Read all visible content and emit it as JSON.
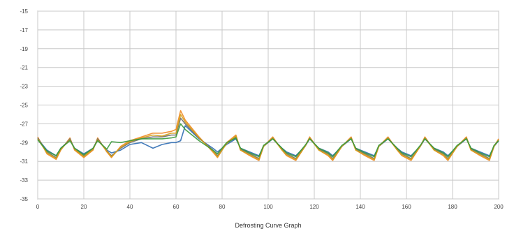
{
  "chart_data": {
    "type": "line",
    "title": "",
    "caption": "Defrosting Curve Graph",
    "xlabel": "",
    "ylabel": "",
    "xlim": [
      0,
      200
    ],
    "ylim": [
      -35,
      -15
    ],
    "x_ticks": [
      0,
      20,
      40,
      60,
      80,
      100,
      120,
      140,
      160,
      180,
      200
    ],
    "y_ticks": [
      -15,
      -17,
      -19,
      -21,
      -23,
      -25,
      -27,
      -29,
      -31,
      -33,
      -35
    ],
    "x_tick_labels": [
      "0",
      "20",
      "40",
      "60",
      "80",
      "100",
      "120",
      "140",
      "160",
      "180",
      "200"
    ],
    "y_tick_labels": [
      "-15",
      "-17",
      "-19",
      "-21",
      "-23",
      "-25",
      "-27",
      "-29",
      "-31",
      "-33",
      "-35"
    ],
    "grid": true,
    "legend": "none",
    "series": [
      {
        "color": "#2f6db3",
        "x": [
          0,
          4,
          8,
          10,
          14,
          16,
          20,
          24,
          26,
          30,
          32,
          36,
          40,
          45,
          50,
          54,
          58,
          60,
          62,
          64,
          70,
          76,
          78,
          82,
          86,
          88,
          92,
          96,
          98,
          102,
          106,
          108,
          112,
          116,
          118,
          122,
          126,
          128,
          132,
          136,
          138,
          142,
          146,
          148,
          152,
          156,
          158,
          162,
          166,
          168,
          172,
          176,
          178,
          182,
          186,
          188,
          192,
          196,
          198,
          200
        ],
        "y": [
          -28.6,
          -29.8,
          -30.4,
          -29.6,
          -28.7,
          -29.6,
          -30.2,
          -29.6,
          -28.7,
          -29.8,
          -30.1,
          -29.8,
          -29.2,
          -29.0,
          -29.6,
          -29.2,
          -29.0,
          -29.0,
          -28.8,
          -27.2,
          -28.6,
          -29.6,
          -30.0,
          -29.2,
          -28.6,
          -29.6,
          -30.0,
          -30.4,
          -29.4,
          -28.6,
          -29.6,
          -30.0,
          -30.4,
          -29.4,
          -28.6,
          -29.6,
          -30.0,
          -30.4,
          -29.4,
          -28.6,
          -29.6,
          -30.0,
          -30.4,
          -29.4,
          -28.6,
          -29.6,
          -30.0,
          -30.4,
          -29.4,
          -28.6,
          -29.6,
          -30.0,
          -30.4,
          -29.4,
          -28.6,
          -29.6,
          -30.0,
          -30.4,
          -29.4,
          -28.8
        ]
      },
      {
        "color": "#f08a24",
        "x": [
          0,
          4,
          8,
          10,
          14,
          16,
          20,
          24,
          26,
          30,
          32,
          36,
          40,
          45,
          50,
          54,
          58,
          60,
          62,
          64,
          70,
          76,
          78,
          82,
          86,
          88,
          92,
          96,
          98,
          102,
          106,
          108,
          112,
          116,
          118,
          122,
          126,
          128,
          132,
          136,
          138,
          142,
          146,
          148,
          152,
          156,
          158,
          162,
          166,
          168,
          172,
          176,
          178,
          182,
          186,
          188,
          192,
          196,
          198,
          200
        ],
        "y": [
          -28.4,
          -30.2,
          -30.8,
          -29.8,
          -28.5,
          -29.8,
          -30.6,
          -29.8,
          -28.5,
          -30.0,
          -30.6,
          -29.4,
          -28.8,
          -28.4,
          -28.0,
          -28.0,
          -27.8,
          -27.6,
          -25.6,
          -26.6,
          -28.4,
          -30.0,
          -30.6,
          -29.0,
          -28.2,
          -29.8,
          -30.4,
          -30.9,
          -29.4,
          -28.4,
          -29.8,
          -30.4,
          -30.9,
          -29.4,
          -28.4,
          -29.8,
          -30.4,
          -30.9,
          -29.4,
          -28.4,
          -29.8,
          -30.4,
          -30.9,
          -29.4,
          -28.4,
          -29.8,
          -30.4,
          -30.9,
          -29.4,
          -28.4,
          -29.8,
          -30.4,
          -30.9,
          -29.4,
          -28.4,
          -29.8,
          -30.4,
          -30.9,
          -29.4,
          -28.6
        ]
      },
      {
        "color": "#6a6a6a",
        "x": [
          0,
          4,
          8,
          10,
          14,
          16,
          20,
          24,
          26,
          30,
          32,
          36,
          40,
          45,
          50,
          54,
          58,
          60,
          62,
          64,
          70,
          76,
          78,
          82,
          86,
          88,
          92,
          96,
          98,
          102,
          106,
          108,
          112,
          116,
          118,
          122,
          126,
          128,
          132,
          136,
          138,
          142,
          146,
          148,
          152,
          156,
          158,
          162,
          166,
          168,
          172,
          176,
          178,
          182,
          186,
          188,
          192,
          196,
          198,
          200
        ],
        "y": [
          -28.5,
          -30.0,
          -30.6,
          -29.7,
          -28.6,
          -29.7,
          -30.4,
          -29.7,
          -28.6,
          -29.9,
          -30.4,
          -29.6,
          -29.0,
          -28.6,
          -28.4,
          -28.4,
          -28.2,
          -28.2,
          -26.4,
          -27.0,
          -28.5,
          -29.8,
          -30.4,
          -29.1,
          -28.4,
          -29.7,
          -30.2,
          -30.7,
          -29.4,
          -28.5,
          -29.7,
          -30.2,
          -30.7,
          -29.4,
          -28.5,
          -29.7,
          -30.2,
          -30.7,
          -29.4,
          -28.5,
          -29.7,
          -30.2,
          -30.7,
          -29.4,
          -28.5,
          -29.7,
          -30.2,
          -30.7,
          -29.4,
          -28.5,
          -29.7,
          -30.2,
          -30.7,
          -29.4,
          -28.5,
          -29.7,
          -30.2,
          -30.7,
          -29.4,
          -28.7
        ]
      },
      {
        "color": "#d4a017",
        "x": [
          0,
          4,
          8,
          10,
          14,
          16,
          20,
          24,
          26,
          30,
          32,
          36,
          40,
          45,
          50,
          54,
          58,
          60,
          62,
          64,
          70,
          76,
          78,
          82,
          86,
          88,
          92,
          96,
          98,
          102,
          106,
          108,
          112,
          116,
          118,
          122,
          126,
          128,
          132,
          136,
          138,
          142,
          146,
          148,
          152,
          156,
          158,
          162,
          166,
          168,
          172,
          176,
          178,
          182,
          186,
          188,
          192,
          196,
          198,
          200
        ],
        "y": [
          -28.6,
          -30.1,
          -30.7,
          -29.7,
          -28.7,
          -29.7,
          -30.5,
          -29.7,
          -28.7,
          -29.9,
          -30.5,
          -29.5,
          -28.9,
          -28.5,
          -28.2,
          -28.3,
          -28.0,
          -28.0,
          -26.0,
          -26.8,
          -28.5,
          -29.9,
          -30.5,
          -29.1,
          -28.3,
          -29.8,
          -30.3,
          -30.8,
          -29.4,
          -28.5,
          -29.8,
          -30.3,
          -30.8,
          -29.4,
          -28.5,
          -29.8,
          -30.3,
          -30.8,
          -29.4,
          -28.5,
          -29.8,
          -30.3,
          -30.8,
          -29.4,
          -28.5,
          -29.8,
          -30.3,
          -30.8,
          -29.4,
          -28.5,
          -29.8,
          -30.3,
          -30.8,
          -29.4,
          -28.5,
          -29.8,
          -30.3,
          -30.8,
          -29.4,
          -28.7
        ]
      },
      {
        "color": "#3a9a3a",
        "x": [
          0,
          4,
          8,
          10,
          14,
          16,
          20,
          24,
          26,
          30,
          32,
          36,
          40,
          45,
          50,
          54,
          58,
          60,
          62,
          64,
          70,
          76,
          78,
          82,
          86,
          88,
          92,
          96,
          98,
          102,
          106,
          108,
          112,
          116,
          118,
          122,
          126,
          128,
          132,
          136,
          138,
          142,
          146,
          148,
          152,
          156,
          158,
          162,
          166,
          168,
          172,
          176,
          178,
          182,
          186,
          188,
          192,
          196,
          198,
          200
        ],
        "y": [
          -28.7,
          -29.9,
          -30.4,
          -29.6,
          -28.8,
          -29.6,
          -30.3,
          -29.6,
          -28.8,
          -29.7,
          -28.9,
          -29.0,
          -28.8,
          -28.6,
          -28.6,
          -28.6,
          -28.5,
          -28.4,
          -27.0,
          -27.6,
          -28.8,
          -29.8,
          -30.2,
          -29.0,
          -28.5,
          -29.6,
          -30.1,
          -30.5,
          -29.3,
          -28.6,
          -29.6,
          -30.1,
          -30.5,
          -29.3,
          -28.6,
          -29.6,
          -30.1,
          -30.5,
          -29.3,
          -28.6,
          -29.6,
          -30.1,
          -30.5,
          -29.3,
          -28.6,
          -29.6,
          -30.1,
          -30.5,
          -29.3,
          -28.6,
          -29.6,
          -30.1,
          -30.5,
          -29.3,
          -28.6,
          -29.6,
          -30.1,
          -30.5,
          -29.3,
          -28.8
        ]
      }
    ]
  }
}
